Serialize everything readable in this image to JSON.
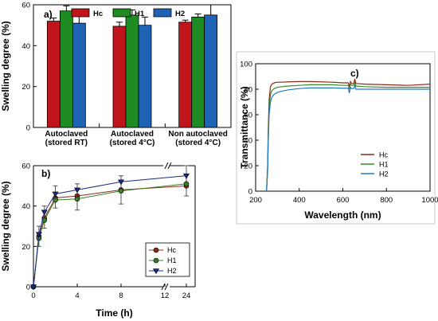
{
  "chart_data": [
    {
      "panel": "a)",
      "type": "bar",
      "ylabel": "Swelling degree (%)",
      "xlabel": "",
      "ylim": [
        0,
        60
      ],
      "yticks": [
        0,
        20,
        40,
        60
      ],
      "categories": [
        "Autoclaved (stored RT)",
        "Autoclaved (stored 4°C)",
        "Non autoclaved (stored 4°C)"
      ],
      "category_lines": [
        [
          "Autoclaved",
          "(stored RT)"
        ],
        [
          "Autoclaved",
          "(stored 4°C)"
        ],
        [
          "Non autoclaved",
          "(stored 4°C)"
        ]
      ],
      "legend_placement": "top",
      "series": [
        {
          "name": "Hc",
          "color": "#c0161b",
          "values": [
            52,
            49.5,
            51.5
          ],
          "errors": [
            1.5,
            2,
            1
          ]
        },
        {
          "name": "H1",
          "color": "#1f8c23",
          "values": [
            57,
            55,
            54
          ],
          "errors": [
            2.5,
            2.5,
            1.5
          ]
        },
        {
          "name": "H2",
          "color": "#1f63b4",
          "values": [
            51,
            50,
            55
          ],
          "errors": [
            4.5,
            4,
            5
          ]
        }
      ]
    },
    {
      "panel": "b)",
      "type": "line",
      "xlabel": "Time (h)",
      "ylabel": "Swelling degree (%)",
      "ylim": [
        0,
        60
      ],
      "yticks": [
        0,
        20,
        40,
        60
      ],
      "xticks": [
        "0",
        "4",
        "8",
        "12",
        "24"
      ],
      "axis_break": "between 12 and 24",
      "legend_placement": "bottom-right",
      "x": [
        0,
        0.5,
        1,
        2,
        4,
        8,
        24
      ],
      "series": [
        {
          "name": "Hc",
          "color": "#8b2a1a",
          "marker": "circle",
          "values": [
            0,
            25,
            34,
            44,
            45,
            48,
            50
          ]
        },
        {
          "name": "H1",
          "color": "#3a7d2a",
          "marker": "circle",
          "values": [
            0,
            24,
            33,
            43,
            43.5,
            47.5,
            51
          ]
        },
        {
          "name": "H2",
          "color": "#1a2a80",
          "marker": "triangle-down",
          "values": [
            0,
            26,
            37,
            46,
            48,
            52,
            55
          ]
        }
      ],
      "error_bars": [
        {
          "x": 0.5,
          "lo": 20,
          "hi": 30
        },
        {
          "x": 1,
          "lo": 29,
          "hi": 40
        },
        {
          "x": 2,
          "lo": 39,
          "hi": 50
        },
        {
          "x": 4,
          "lo": 38,
          "hi": 51
        },
        {
          "x": 8,
          "lo": 41,
          "hi": 55
        },
        {
          "x": 24,
          "lo": 45,
          "hi": 60
        }
      ]
    },
    {
      "panel": "c)",
      "type": "line",
      "xlabel": "Wavelength (nm)",
      "ylabel": "Transmittance (%)",
      "xlim": [
        200,
        1000
      ],
      "ylim": [
        0,
        100
      ],
      "xticks": [
        200,
        400,
        600,
        800,
        1000
      ],
      "yticks": [
        0,
        20,
        40,
        60,
        80,
        100
      ],
      "legend_placement": "bottom-right",
      "series": [
        {
          "name": "Hc",
          "color": "#8b2a1a",
          "x": [
            250,
            255,
            258,
            262,
            268,
            275,
            285,
            300,
            320,
            350,
            400,
            450,
            500,
            550,
            600,
            625,
            630,
            635,
            640,
            650,
            655,
            660,
            700,
            800,
            900,
            1000
          ],
          "y": [
            0,
            20,
            50,
            72,
            82,
            84,
            85,
            85.5,
            85.5,
            85.8,
            86,
            86,
            85.8,
            85.5,
            85,
            85,
            82,
            86,
            84.5,
            84.5,
            88,
            84.5,
            84,
            83.5,
            83,
            84
          ]
        },
        {
          "name": "H1",
          "color": "#3a8a2a",
          "x": [
            250,
            255,
            258,
            262,
            268,
            275,
            285,
            300,
            320,
            350,
            400,
            450,
            500,
            550,
            600,
            625,
            630,
            635,
            640,
            650,
            655,
            660,
            700,
            800,
            900,
            1000
          ],
          "y": [
            0,
            18,
            46,
            66,
            76,
            79,
            80.5,
            81.5,
            82,
            82.5,
            83,
            83.5,
            83.5,
            83.5,
            83,
            83,
            80,
            84,
            83,
            83,
            85.5,
            82.5,
            82,
            81.5,
            81.5,
            81.5
          ]
        },
        {
          "name": "H2",
          "color": "#1f78c8",
          "x": [
            250,
            255,
            258,
            262,
            268,
            275,
            285,
            300,
            320,
            350,
            400,
            450,
            500,
            550,
            600,
            625,
            630,
            635,
            640,
            650,
            655,
            660,
            700,
            800,
            900,
            1000
          ],
          "y": [
            0,
            15,
            40,
            60,
            70,
            74,
            76,
            77.5,
            78.5,
            79.5,
            80.5,
            81,
            81,
            81,
            80.8,
            80.8,
            77,
            81.5,
            80.5,
            80.5,
            83,
            80,
            80,
            80,
            80,
            80
          ]
        }
      ]
    }
  ]
}
